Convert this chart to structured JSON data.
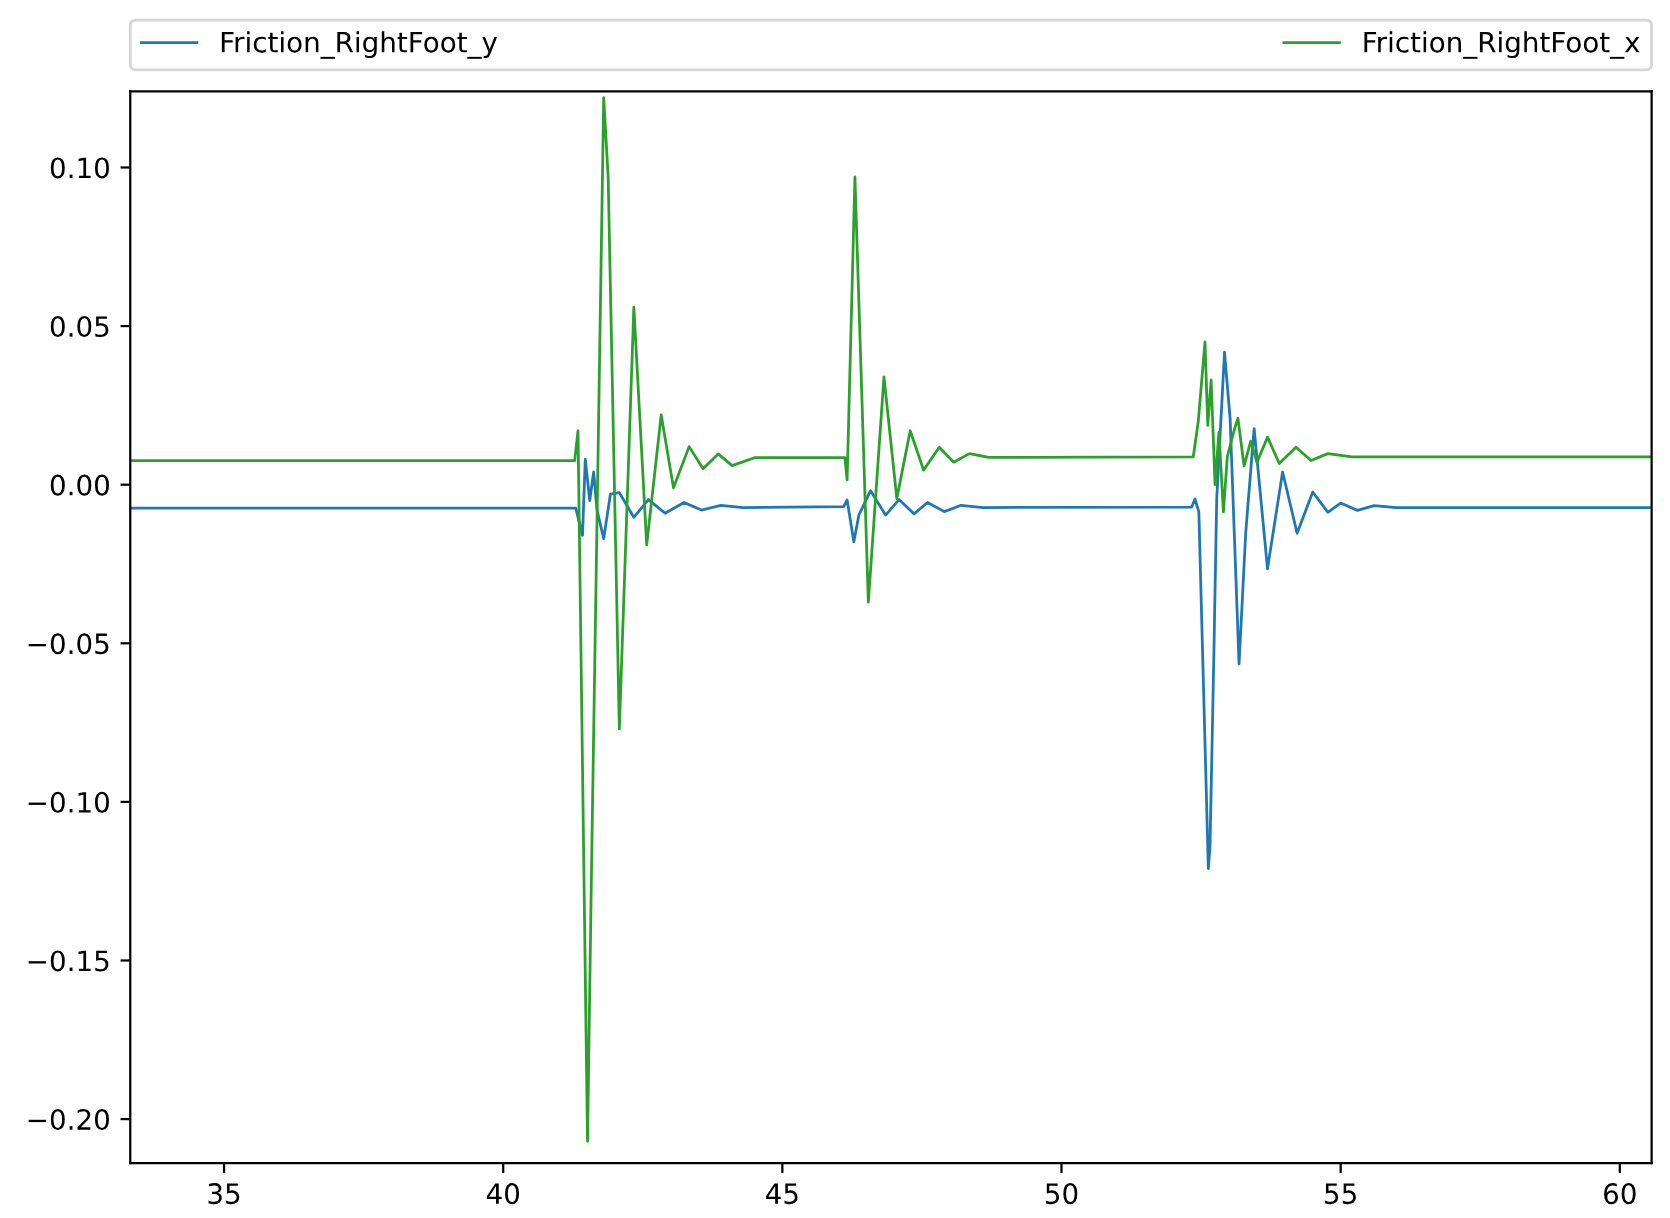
{
  "chart_data": {
    "type": "line",
    "legend": "top",
    "grid": false,
    "marker": "none",
    "line_style": "solid",
    "xlim": [
      33.32,
      60.57
    ],
    "ylim": [
      -0.2139,
      0.124
    ],
    "xticks": [
      35,
      40,
      45,
      50,
      55,
      60
    ],
    "yticks": [
      {
        "value": -0.2,
        "label": "−0.20"
      },
      {
        "value": -0.15,
        "label": "−0.15"
      },
      {
        "value": -0.1,
        "label": "−0.10"
      },
      {
        "value": -0.05,
        "label": "−0.05"
      },
      {
        "value": 0,
        "label": "0.00"
      },
      {
        "value": 0.05,
        "label": "0.05"
      },
      {
        "value": 0.1,
        "label": "0.10"
      }
    ],
    "series": [
      {
        "name": "Friction_RightFoot_y",
        "color": "#1f77b4",
        "x": [
          33.32,
          41.3,
          41.42,
          41.47,
          41.55,
          41.62,
          41.68,
          41.8,
          41.92,
          42.08,
          42.34,
          42.6,
          42.9,
          43.24,
          43.55,
          43.9,
          44.3,
          46.1,
          46.16,
          46.28,
          46.37,
          46.58,
          46.85,
          47.09,
          47.36,
          47.6,
          47.9,
          48.2,
          48.6,
          52.33,
          52.39,
          52.46,
          52.63,
          52.66,
          52.73,
          52.78,
          52.92,
          53.02,
          53.18,
          53.3,
          53.45,
          53.69,
          53.96,
          54.22,
          54.5,
          54.77,
          55.0,
          55.3,
          55.6,
          56.0,
          60.57
        ],
        "values": [
          -0.0074,
          -0.0074,
          -0.016,
          0.008,
          -0.005,
          0.004,
          -0.008,
          -0.017,
          -0.003,
          -0.0025,
          -0.0103,
          -0.0047,
          -0.009,
          -0.0056,
          -0.008,
          -0.0065,
          -0.0072,
          -0.0069,
          -0.0048,
          -0.018,
          -0.0096,
          -0.0019,
          -0.0096,
          -0.0047,
          -0.0092,
          -0.0056,
          -0.0085,
          -0.0065,
          -0.0072,
          -0.0071,
          -0.0045,
          -0.0086,
          -0.121,
          -0.114,
          -0.0527,
          -0.0045,
          0.0418,
          0.0208,
          -0.0565,
          -0.015,
          0.0177,
          -0.0265,
          0.004,
          -0.0153,
          -0.0023,
          -0.0087,
          -0.0058,
          -0.0081,
          -0.0066,
          -0.0072,
          -0.0072
        ]
      },
      {
        "name": "Friction_RightFoot_x",
        "color": "#2ca02c",
        "x": [
          33.32,
          41.28,
          41.34,
          41.51,
          41.58,
          41.8,
          41.88,
          42.08,
          42.34,
          42.57,
          42.83,
          43.05,
          43.33,
          43.58,
          43.85,
          44.1,
          44.5,
          46.12,
          46.16,
          46.3,
          46.54,
          46.82,
          47.05,
          47.29,
          47.53,
          47.81,
          48.07,
          48.35,
          48.7,
          52.36,
          52.45,
          52.57,
          52.62,
          52.68,
          52.75,
          52.82,
          52.9,
          52.97,
          53.09,
          53.16,
          53.27,
          53.39,
          53.5,
          53.69,
          53.9,
          54.2,
          54.47,
          54.77,
          55.2,
          60.57
        ],
        "values": [
          0.0076,
          0.0076,
          0.017,
          -0.207,
          -0.123,
          0.122,
          0.097,
          -0.077,
          0.056,
          -0.019,
          0.022,
          -0.001,
          0.012,
          0.005,
          0.0097,
          0.006,
          0.0085,
          0.0085,
          0.0015,
          0.097,
          -0.037,
          0.034,
          -0.0044,
          0.017,
          0.0046,
          0.0118,
          0.0071,
          0.0098,
          0.0086,
          0.0088,
          0.02,
          0.045,
          0.0187,
          0.033,
          0.0,
          0.0166,
          -0.0086,
          0.0088,
          0.017,
          0.021,
          0.0059,
          0.0137,
          0.007,
          0.015,
          0.0067,
          0.0118,
          0.0076,
          0.0098,
          0.0088,
          0.0088
        ]
      }
    ]
  }
}
